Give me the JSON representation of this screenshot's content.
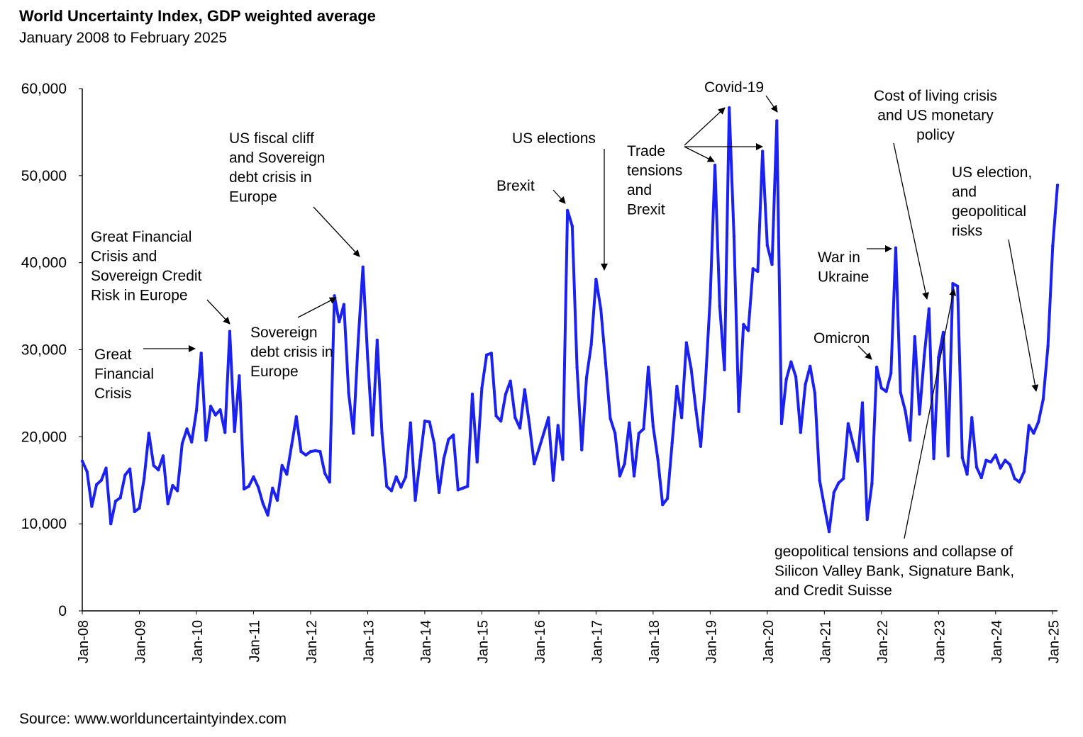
{
  "chart_data": {
    "type": "line",
    "title": "World Uncertainty Index, GDP weighted average",
    "subtitle": "January 2008 to February 2025",
    "source": "Source: www.worlduncertaintyindex.com",
    "xlabel": "",
    "ylabel": "",
    "ylim": [
      0,
      60000
    ],
    "y_ticks": [
      0,
      10000,
      20000,
      30000,
      40000,
      50000,
      60000
    ],
    "y_tick_labels": [
      "0",
      "10,000",
      "20,000",
      "30,000",
      "40,000",
      "50,000",
      "60,000"
    ],
    "x_tick_labels": [
      "Jan-08",
      "Jan-09",
      "Jan-10",
      "Jan-11",
      "Jan-12",
      "Jan-13",
      "Jan-14",
      "Jan-15",
      "Jan-16",
      "Jan-17",
      "Jan-18",
      "Jan-19",
      "Jan-20",
      "Jan-21",
      "Jan-22",
      "Jan-23",
      "Jan-24",
      "Jan-25"
    ],
    "grid": false,
    "legend": "none",
    "line_color": "#1a21f0",
    "series": [
      {
        "name": "World Uncertainty Index",
        "start": "Jan-08",
        "frequency": "monthly",
        "values": [
          17200,
          16000,
          12000,
          14500,
          15000,
          16400,
          10000,
          12600,
          13000,
          15600,
          16300,
          11400,
          11800,
          15200,
          20400,
          16700,
          16200,
          17800,
          12300,
          14400,
          13800,
          19200,
          20900,
          19400,
          23000,
          29600,
          19600,
          23500,
          22500,
          23100,
          20500,
          32100,
          20600,
          27000,
          14000,
          14300,
          15400,
          14200,
          12300,
          11000,
          14100,
          12700,
          16700,
          15700,
          19000,
          22300,
          18300,
          17900,
          18300,
          18400,
          18300,
          15800,
          14800,
          36200,
          33200,
          35200,
          25000,
          20400,
          31000,
          39500,
          29000,
          20200,
          31100,
          20400,
          14300,
          13800,
          15400,
          14200,
          15400,
          21600,
          12700,
          17300,
          21800,
          21700,
          19200,
          13600,
          17500,
          19700,
          20200,
          13900,
          14100,
          14300,
          24900,
          17100,
          25600,
          29400,
          29600,
          22400,
          21800,
          24900,
          26400,
          22200,
          21000,
          25400,
          21400,
          16900,
          18600,
          20400,
          22200,
          15000,
          21300,
          17400,
          46000,
          44200,
          28000,
          18500,
          26800,
          30600,
          38100,
          34700,
          28500,
          22100,
          20400,
          15500,
          16900,
          21600,
          15500,
          20400,
          20900,
          28000,
          21200,
          17400,
          12200,
          12900,
          19300,
          25800,
          22200,
          30800,
          27800,
          23100,
          18900,
          26200,
          36000,
          51200,
          35000,
          27700,
          57800,
          43000,
          22900,
          32900,
          32200,
          39300,
          39000,
          52800,
          42000,
          39800,
          56300,
          21500,
          26600,
          28600,
          26900,
          20500,
          26000,
          28100,
          25000,
          15000,
          12000,
          9100,
          13600,
          14700,
          15200,
          21500,
          19300,
          17200,
          23900,
          10500,
          14600,
          28000,
          25600,
          25200,
          27300,
          41700,
          25100,
          23000,
          19600,
          31500,
          22600,
          29300,
          34700,
          17500,
          29100,
          32000,
          17800,
          37600,
          37300,
          17600,
          15700,
          22200,
          16500,
          15300,
          17300,
          17100,
          17900,
          16400,
          17300,
          16800,
          15200,
          14800,
          16000,
          21300,
          20400,
          21700,
          24300,
          30400,
          41900,
          48900
        ]
      }
    ],
    "annotations": [
      {
        "name": "gfc",
        "lines": [
          "Great",
          "Financial",
          "Crisis"
        ],
        "points_to": "Jan-10"
      },
      {
        "name": "gfc-sovereign",
        "lines": [
          "Great Financial",
          "Crisis and",
          "Sovereign Credit",
          "Risk in Europe"
        ],
        "points_to": "Aug-10"
      },
      {
        "name": "sovereign-debt",
        "lines": [
          "Sovereign",
          "debt crisis in",
          "Europe"
        ],
        "points_to": "Jun-12"
      },
      {
        "name": "us-fiscal-cliff",
        "lines": [
          "US fiscal cliff",
          "and Sovereign",
          "debt crisis in",
          "Europe"
        ],
        "points_to": "Dec-12"
      },
      {
        "name": "brexit",
        "lines": [
          "Brexit"
        ],
        "points_to": "Jul-16"
      },
      {
        "name": "us-elections",
        "lines": [
          "US elections"
        ],
        "points_to": "Jan-17"
      },
      {
        "name": "trade-tensions",
        "lines": [
          "Trade",
          "tensions",
          "and",
          "Brexit"
        ],
        "points_to": "Jan-19, Apr-19, Dec-19"
      },
      {
        "name": "covid",
        "lines": [
          "Covid-19"
        ],
        "points_to": "Apr-20"
      },
      {
        "name": "omicron",
        "lines": [
          "Omicron"
        ],
        "points_to": "Dec-21"
      },
      {
        "name": "war-ukraine",
        "lines": [
          "War in",
          "Ukraine"
        ],
        "points_to": "Apr-22"
      },
      {
        "name": "cost-of-living",
        "lines": [
          "Cost of living crisis",
          "and US monetary",
          "policy"
        ],
        "points_to": "Nov-22"
      },
      {
        "name": "svb",
        "lines": [
          "geopolitical tensions and collapse of",
          "Silicon Valley Bank, Signature Bank,",
          "and Credit Suisse"
        ],
        "points_to": "Apr-23"
      },
      {
        "name": "us-election-geopolitical",
        "lines": [
          "US election,",
          "and",
          "geopolitical",
          "risks"
        ],
        "points_to": "Oct-24"
      }
    ]
  }
}
